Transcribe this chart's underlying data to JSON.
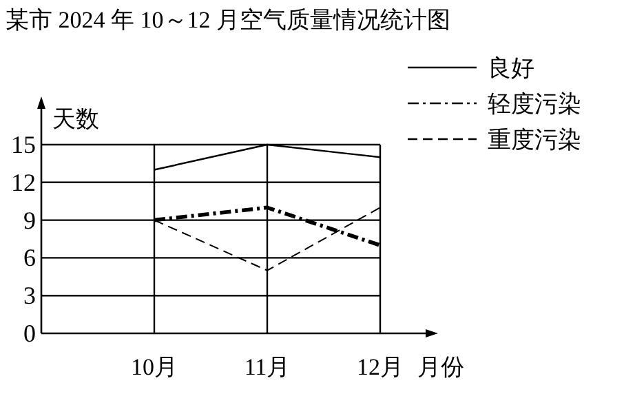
{
  "chart_data": {
    "type": "line",
    "title": "某市 2024 年 10～12 月空气质量情况统计图",
    "xlabel": "月份",
    "ylabel": "天数",
    "categories": [
      null,
      "10月",
      "11月",
      "12月"
    ],
    "ylim": [
      0,
      15
    ],
    "yticks": [
      0,
      3,
      6,
      9,
      12,
      15
    ],
    "grid": true,
    "legend": "top right",
    "marker": "none",
    "series": [
      {
        "name": "良好",
        "color": "#000000",
        "line_style": "solid",
        "values": [
          null,
          13,
          15,
          14
        ]
      },
      {
        "name": "轻度污染",
        "color": "#000000",
        "line_style": "dashdot",
        "values": [
          null,
          9,
          10,
          7
        ]
      },
      {
        "name": "重度污染",
        "color": "#000000",
        "line_style": "dashed",
        "values": [
          null,
          9,
          5,
          10
        ]
      }
    ]
  }
}
